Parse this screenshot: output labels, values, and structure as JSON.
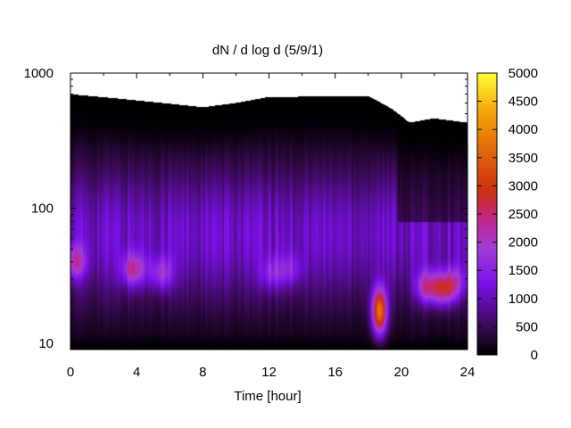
{
  "chart_data": {
    "type": "heatmap",
    "title": "dN / d log d (5/9/1)",
    "xlabel": "Time [hour]",
    "ylabel": "",
    "xlim": [
      0,
      24
    ],
    "ylim": [
      9,
      1000
    ],
    "y_scale": "log",
    "x_ticks": [
      "0",
      "4",
      "8",
      "12",
      "16",
      "20",
      "24"
    ],
    "y_ticks": [
      "10",
      "100",
      "1000"
    ],
    "colorbar": {
      "range": [
        0,
        5000
      ],
      "ticks": [
        "0",
        "500",
        "1000",
        "1500",
        "2000",
        "2500",
        "3000",
        "3500",
        "4000",
        "4500",
        "5000"
      ],
      "colormap": "black-purple-orange-yellow"
    },
    "hotspots": [
      {
        "time": 0.2,
        "diameter": 40,
        "value": 2400
      },
      {
        "time": 3.8,
        "diameter": 35,
        "value": 2500
      },
      {
        "time": 5.5,
        "diameter": 33,
        "value": 2100
      },
      {
        "time": 12.2,
        "diameter": 33,
        "value": 1800
      },
      {
        "time": 13.3,
        "diameter": 35,
        "value": 1700
      },
      {
        "time": 18.7,
        "diameter": 17,
        "value": 4400
      },
      {
        "time": 21.6,
        "diameter": 26,
        "value": 2600
      },
      {
        "time": 22.6,
        "diameter": 25,
        "value": 2800
      },
      {
        "time": 23.3,
        "diameter": 28,
        "value": 2000
      }
    ],
    "upper_boundary_diameter": [
      {
        "time": 0,
        "diameter": 650
      },
      {
        "time": 8,
        "diameter": 520
      },
      {
        "time": 10,
        "diameter": 560
      },
      {
        "time": 12,
        "diameter": 620
      },
      {
        "time": 18,
        "diameter": 630
      },
      {
        "time": 19.5,
        "diameter": 500
      },
      {
        "time": 20.5,
        "diameter": 400
      },
      {
        "time": 22,
        "diameter": 430
      },
      {
        "time": 24,
        "diameter": 400
      }
    ]
  }
}
